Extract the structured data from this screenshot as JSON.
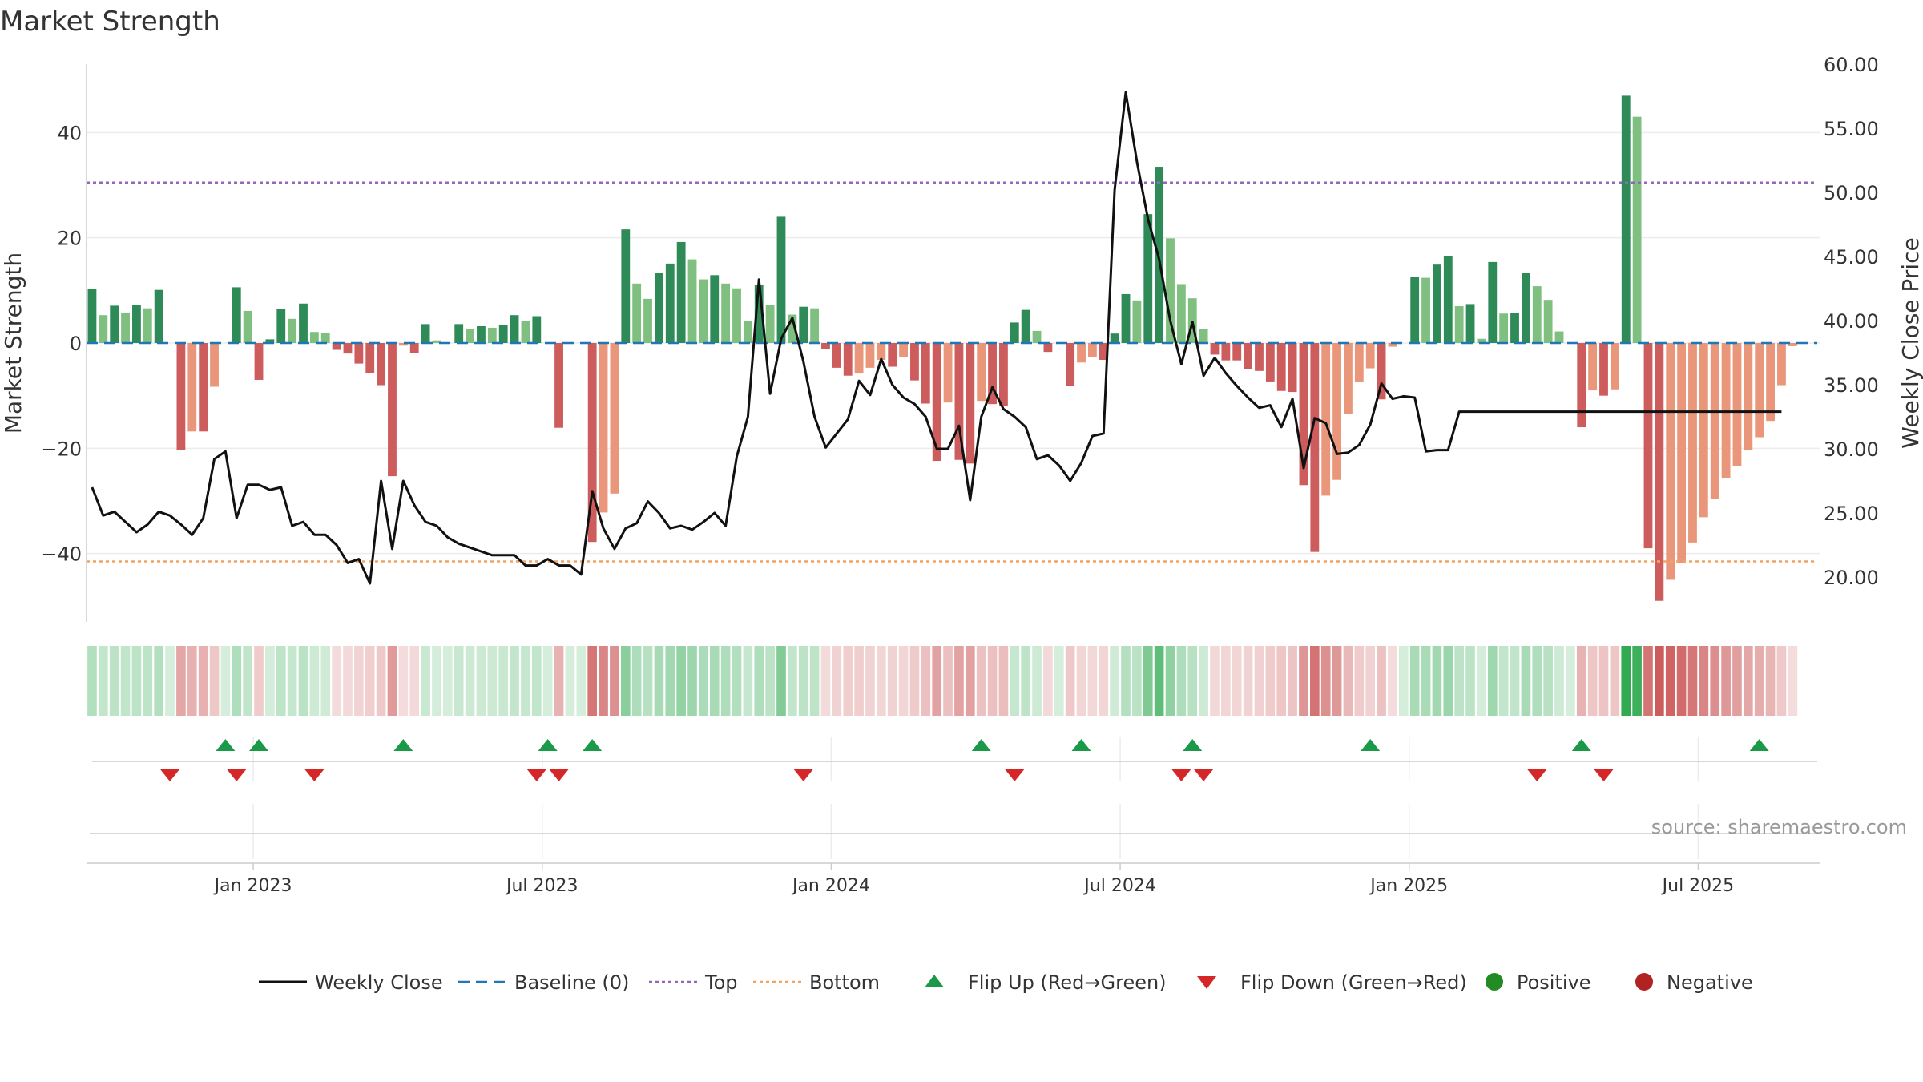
{
  "chart_data": {
    "type": "bar",
    "title": "Market Strength",
    "ylabel": "Market Strength",
    "y2label": "Weekly Close Price",
    "source": "source: sharemaestro.com",
    "ylim": [
      -53,
      53
    ],
    "y2lim": [
      16.5,
      60
    ],
    "yticks": [
      40,
      20,
      0,
      -20,
      -40
    ],
    "ytick_labels": [
      "40",
      "20",
      "0",
      "−20",
      "−40"
    ],
    "y2ticks": [
      60,
      55,
      50,
      45,
      40,
      35,
      30,
      25,
      20
    ],
    "y2tick_labels": [
      "60.00",
      "55.00",
      "50.00",
      "45.00",
      "40.00",
      "35.00",
      "30.00",
      "25.00",
      "20.00"
    ],
    "top_level": 30.5,
    "bottom_level": -41.5,
    "x_weeks": 156,
    "x_ticks": [
      {
        "label": "Jan 2023",
        "week": 15
      },
      {
        "label": "Jul 2023",
        "week": 41
      },
      {
        "label": "Jan 2024",
        "week": 67
      },
      {
        "label": "Jul 2024",
        "week": 93
      },
      {
        "label": "Jan 2025",
        "week": 119
      },
      {
        "label": "Jul 2025",
        "week": 145
      }
    ],
    "strength": [
      10.3,
      5.3,
      7.1,
      5.8,
      7.2,
      6.6,
      10.1,
      0,
      -20.3,
      -16.8,
      -16.8,
      -8.3,
      0,
      10.6,
      6.1,
      -7,
      0.7,
      6.5,
      4.6,
      7.5,
      2.1,
      1.9,
      -1.3,
      -2,
      -3.9,
      -5.7,
      -8,
      -25.3,
      -0.5,
      -1.9,
      3.6,
      0.5,
      0,
      3.6,
      2.7,
      3.2,
      2.9,
      3.5,
      5.3,
      4.2,
      5.1,
      0,
      -16.1,
      0,
      0,
      -37.8,
      -32.2,
      -28.6,
      21.6,
      11.3,
      8.4,
      13.3,
      15.1,
      19.2,
      15.9,
      12.1,
      12.9,
      11.3,
      10.4,
      4.2,
      11,
      7.2,
      24,
      5.4,
      6.9,
      6.6,
      -1.1,
      -4.7,
      -6.2,
      -5.8,
      -4.7,
      -3.2,
      -4.5,
      -2.7,
      -7.1,
      -11.5,
      -22.4,
      -11.3,
      -22.2,
      -22.9,
      -11,
      -11.6,
      -12,
      3.9,
      6.3,
      2.3,
      -1.7,
      0,
      -8.1,
      -3.7,
      -2.6,
      -3.2,
      1.8,
      9.3,
      8.1,
      24.5,
      33.5,
      19.9,
      11.2,
      8.5,
      2.6,
      -2.2,
      -3.3,
      -3.3,
      -4.9,
      -5.3,
      -7.3,
      -9.1,
      -9.3,
      -27,
      -39.7,
      -29,
      -26,
      -13.5,
      -7.4,
      -4.8,
      -10.7,
      -0.7,
      0,
      12.6,
      12.4,
      14.9,
      16.5,
      7,
      7.4,
      0.8,
      15.4,
      5.6,
      5.7,
      13.4,
      10.8,
      8.2,
      2.2,
      0,
      -16,
      -9,
      -10,
      -8.8,
      47,
      43,
      -39,
      -49,
      -45,
      -41.8,
      -37.9,
      -33.1,
      -29.6,
      -25.6,
      -23.3,
      -20.4,
      -17.9,
      -14.8,
      -8,
      -0.6
    ],
    "weekly_close": [
      27,
      24.8,
      25.1,
      24.3,
      23.5,
      24.1,
      25.1,
      24.8,
      24.1,
      23.3,
      24.6,
      29.2,
      29.8,
      24.6,
      27.2,
      27.2,
      26.8,
      27,
      24,
      24.3,
      23.3,
      23.3,
      22.5,
      21.1,
      21.4,
      19.5,
      27.5,
      22.2,
      27.5,
      25.6,
      24.3,
      24,
      23.1,
      22.6,
      22.3,
      22,
      21.7,
      21.7,
      21.7,
      20.9,
      20.9,
      21.4,
      20.9,
      20.9,
      20.2,
      26.7,
      23.8,
      22.2,
      23.8,
      24.2,
      25.9,
      25,
      23.8,
      24,
      23.7,
      24.3,
      25,
      24,
      29.4,
      32.5,
      43.2,
      34.3,
      38.6,
      40.2,
      36.8,
      32.5,
      30.1,
      31.2,
      32.3,
      35.3,
      34.2,
      37,
      35,
      34,
      33.5,
      32.5,
      30,
      30,
      31.8,
      26,
      32.5,
      34.8,
      33.1,
      32.5,
      31.7,
      29.2,
      29.5,
      28.7,
      27.5,
      28.9,
      31,
      31.2,
      50.2,
      57.8,
      52.4,
      47.9,
      44.8,
      40,
      36.6,
      39.9,
      35.7,
      37.1,
      35.9,
      34.9,
      34,
      33.2,
      33.4,
      31.7,
      33.9,
      28.5,
      32.4,
      32,
      29.6,
      29.7,
      30.3,
      31.9,
      35.1,
      33.9,
      34.1,
      34,
      29.8,
      29.9,
      29.9,
      32.9,
      32.9,
      32.9,
      32.9,
      32.9,
      32.9,
      32.9,
      32.9,
      32.9,
      32.9,
      32.9,
      32.9,
      32.9,
      32.9,
      32.9,
      32.9,
      32.9,
      32.9,
      32.9,
      32.9,
      32.9,
      32.9,
      32.9,
      32.9,
      32.9,
      32.9,
      32.9,
      32.9,
      32.9,
      32.9
    ],
    "flip_up_weeks": [
      12,
      15,
      28,
      41,
      45,
      80,
      89,
      99,
      115,
      134,
      150
    ],
    "flip_down_weeks": [
      7,
      13,
      20,
      40,
      42,
      64,
      83,
      98,
      100,
      130,
      136
    ],
    "legend": [
      {
        "key": "close",
        "label": "Weekly Close"
      },
      {
        "key": "baseline",
        "label": "Baseline (0)"
      },
      {
        "key": "top",
        "label": "Top"
      },
      {
        "key": "bottom",
        "label": "Bottom"
      },
      {
        "key": "flipup",
        "label": "Flip Up (Red→Green)"
      },
      {
        "key": "flipdown",
        "label": "Flip Down (Green→Red)"
      },
      {
        "key": "positive",
        "label": "Positive"
      },
      {
        "key": "negative",
        "label": "Negative"
      }
    ],
    "colors": {
      "pos_dark": "#2e8b57",
      "pos_light": "#7fbf7f",
      "neg_dark": "#cd5c5c",
      "neg_light": "#e9967a",
      "close": "#111111",
      "baseline": "#1f77b4",
      "top": "#9467bd",
      "bottom": "#f4a460",
      "flip_up": "#1a9a48",
      "flip_down": "#d62728",
      "positive": "#228b22",
      "negative": "#b22222",
      "grid": "#ececec",
      "axis": "#cccccc",
      "text": "#333333",
      "source": "#999999"
    }
  }
}
